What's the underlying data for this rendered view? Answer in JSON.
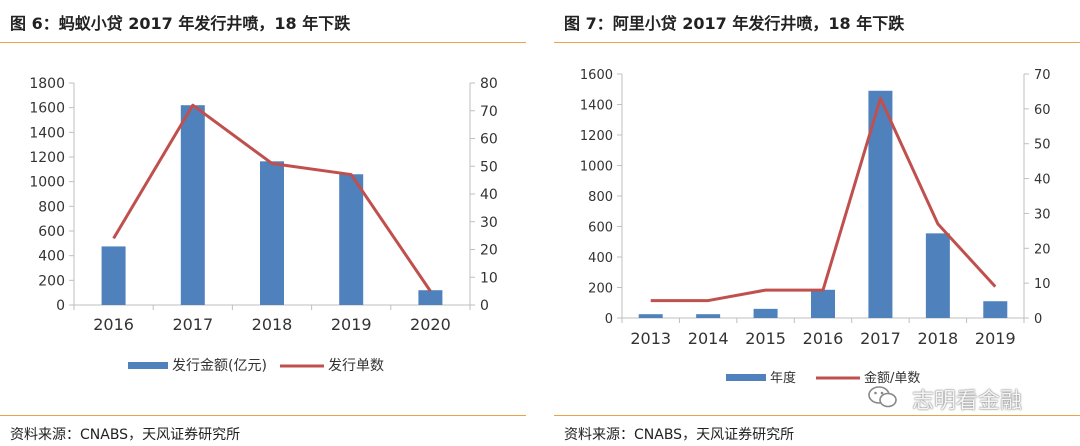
{
  "panels": [
    {
      "title": "图 6：蚂蚁小贷 2017 年发行井喷，18 年下跌",
      "source": "资料来源：CNABS，天风证券研究所"
    },
    {
      "title": "图 7：阿里小贷 2017 年发行井喷，18 年下跌",
      "source": "资料来源：CNABS，天风证券研究所"
    }
  ],
  "watermark": "志明看金融",
  "chart_data": [
    {
      "type": "bar",
      "categories": [
        "2016",
        "2017",
        "2018",
        "2019",
        "2020"
      ],
      "series": [
        {
          "name": "发行金额(亿元)",
          "type": "bar",
          "axis": "left",
          "color": "#4f81bd",
          "values": [
            475,
            1620,
            1165,
            1060,
            120
          ]
        },
        {
          "name": "发行单数",
          "type": "line",
          "axis": "right",
          "color": "#c0504d",
          "values": [
            24,
            72,
            51,
            47,
            5
          ]
        }
      ],
      "ylim": [
        0,
        1800
      ],
      "yticks": [
        0,
        200,
        400,
        600,
        800,
        1000,
        1200,
        1400,
        1600,
        1800
      ],
      "y2lim": [
        0,
        80
      ],
      "y2ticks": [
        0,
        10,
        20,
        30,
        40,
        50,
        60,
        70,
        80
      ],
      "legend": "bottom",
      "grid": false
    },
    {
      "type": "bar",
      "categories": [
        "2013",
        "2014",
        "2015",
        "2016",
        "2017",
        "2018",
        "2019"
      ],
      "series": [
        {
          "name": "年度",
          "type": "bar",
          "axis": "left",
          "color": "#4f81bd",
          "values": [
            25,
            25,
            60,
            185,
            1490,
            555,
            110
          ]
        },
        {
          "name": "金额/单数",
          "type": "line",
          "axis": "right",
          "color": "#c0504d",
          "values": [
            5,
            5,
            8,
            8,
            63,
            27,
            9
          ]
        }
      ],
      "ylim": [
        0,
        1600
      ],
      "yticks": [
        0,
        200,
        400,
        600,
        800,
        1000,
        1200,
        1400,
        1600
      ],
      "y2lim": [
        0,
        70
      ],
      "y2ticks": [
        0,
        10,
        20,
        30,
        40,
        50,
        60,
        70
      ],
      "legend": "bottom",
      "grid": false
    }
  ]
}
